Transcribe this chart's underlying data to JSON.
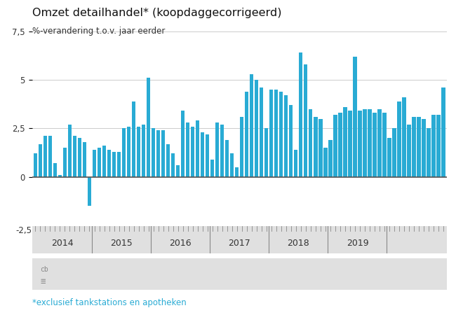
{
  "title": "Omzet detailhandel* (koopdaggecorrigeerd)",
  "subtitle": "%-verandering t.o.v. jaar eerder",
  "footnote": "*exclusief tankstations en apotheken",
  "bar_color": "#29ABD4",
  "background_main": "#ffffff",
  "background_lower": "#e0e0e0",
  "ylim": [
    -2.5,
    7.5
  ],
  "yticks": [
    0,
    2.5,
    5,
    7.5
  ],
  "ytick_labels": [
    "0",
    "2,5",
    "5",
    "7,5"
  ],
  "values": [
    1.2,
    1.7,
    2.1,
    2.1,
    0.7,
    0.1,
    1.5,
    2.7,
    2.1,
    2.0,
    1.8,
    -1.5,
    1.4,
    1.5,
    1.6,
    1.4,
    1.3,
    1.3,
    2.5,
    2.6,
    3.9,
    2.6,
    2.7,
    5.1,
    2.5,
    2.4,
    2.4,
    1.7,
    1.2,
    0.6,
    3.4,
    2.8,
    2.6,
    2.9,
    2.3,
    2.2,
    0.9,
    2.8,
    2.7,
    1.9,
    1.2,
    0.5,
    3.1,
    4.4,
    5.3,
    5.0,
    4.6,
    2.5,
    4.5,
    4.5,
    4.4,
    4.2,
    3.7,
    1.4,
    6.4,
    5.8,
    3.5,
    3.1,
    3.0,
    1.5,
    1.9,
    3.2,
    3.3,
    3.6,
    3.4,
    6.2,
    3.4,
    3.5,
    3.5,
    3.3,
    3.5,
    3.3,
    2.0,
    2.5,
    3.9,
    4.1,
    2.7,
    3.1,
    3.1,
    3.0,
    2.5,
    3.2,
    3.2,
    4.6
  ],
  "x_year_labels": [
    "2014",
    "2015",
    "2016",
    "2017",
    "2018",
    "2019"
  ],
  "x_year_positions": [
    5.5,
    17.5,
    29.5,
    41.5,
    53.5,
    65.5
  ],
  "year_starts": [
    11.5,
    23.5,
    35.5,
    47.5,
    59.5,
    71.5
  ]
}
